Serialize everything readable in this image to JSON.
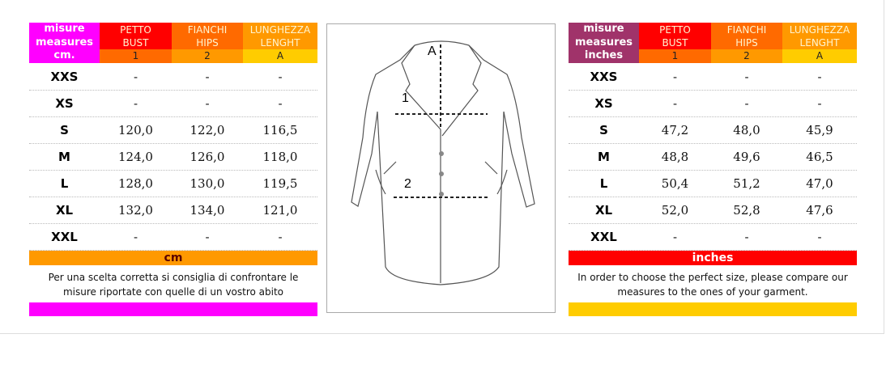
{
  "colors": {
    "magenta": "#ff00ff",
    "plum": "#a0336a",
    "red": "#ff0000",
    "orange": "#ff6a00",
    "amber": "#ff9900",
    "yellow": "#ffcc00"
  },
  "headers": {
    "bust": [
      "PETTO",
      "BUST"
    ],
    "hips": [
      "FIANCHI",
      "HIPS"
    ],
    "length": [
      "LUNGHEZZA",
      "LENGHT"
    ],
    "keys": [
      "1",
      "2",
      "A"
    ]
  },
  "left": {
    "label": [
      "misure",
      "measures",
      "cm."
    ],
    "unit_bar": "cm",
    "note": "Per una scelta corretta si consiglia di confrontare le misure riportate con quelle di un vostro abito",
    "rows": [
      [
        "XXS",
        "-",
        "-",
        "-"
      ],
      [
        "XS",
        "-",
        "-",
        "-"
      ],
      [
        "S",
        "120,0",
        "122,0",
        "116,5"
      ],
      [
        "M",
        "124,0",
        "126,0",
        "118,0"
      ],
      [
        "L",
        "128,0",
        "130,0",
        "119,5"
      ],
      [
        "XL",
        "132,0",
        "134,0",
        "121,0"
      ],
      [
        "XXL",
        "-",
        "-",
        "-"
      ]
    ]
  },
  "right": {
    "label": [
      "misure",
      "measures",
      "inches"
    ],
    "unit_bar": "inches",
    "note": "In order to choose the perfect size, please compare our measures to the ones of your garment.",
    "rows": [
      [
        "XXS",
        "-",
        "-",
        "-"
      ],
      [
        "XS",
        "-",
        "-",
        "-"
      ],
      [
        "S",
        "47,2",
        "48,0",
        "45,9"
      ],
      [
        "M",
        "48,8",
        "49,6",
        "46,5"
      ],
      [
        "L",
        "50,4",
        "51,2",
        "47,0"
      ],
      [
        "XL",
        "52,0",
        "52,8",
        "47,6"
      ],
      [
        "XXL",
        "-",
        "-",
        "-"
      ]
    ]
  },
  "diagram": {
    "labels": [
      "A",
      "1",
      "2"
    ]
  }
}
